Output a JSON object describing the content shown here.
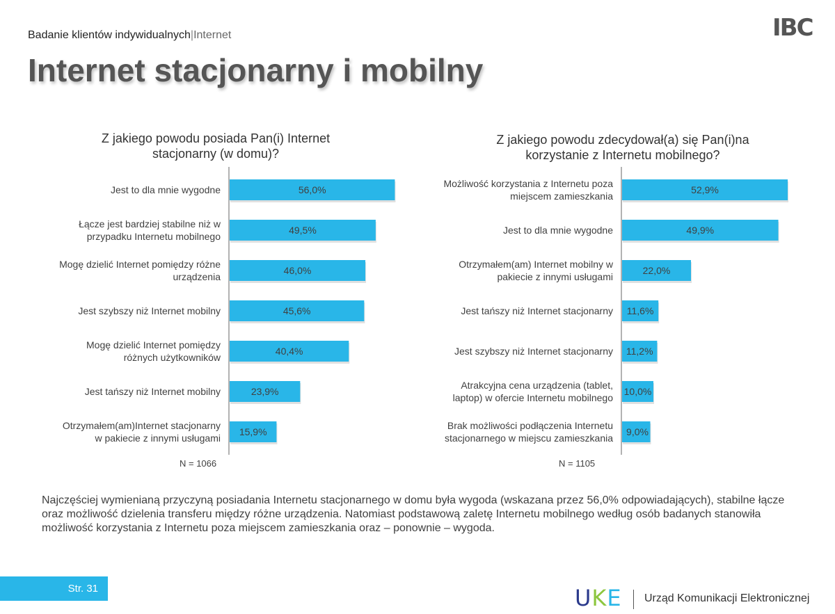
{
  "header": {
    "breadcrumb_main": "Badanie klientów indywidualnych",
    "breadcrumb_sep": "|",
    "breadcrumb_sub": "Internet",
    "page_title": "Internet stacjonarny i mobilny",
    "logo_ibc": "IBC"
  },
  "chart_data": [
    {
      "type": "bar",
      "orientation": "horizontal",
      "title_line1": "Z jakiego powodu posiada Pan(i) Internet",
      "title_line2": "stacjonarny (w domu)?",
      "categories": [
        [
          "Jest to dla mnie wygodne"
        ],
        [
          "Łącze jest bardziej stabilne niż w",
          "przypadku Internetu mobilnego"
        ],
        [
          "Mogę dzielić Internet pomiędzy różne",
          "urządzenia"
        ],
        [
          "Jest szybszy niż Internet mobilny"
        ],
        [
          "Mogę dzielić Internet pomiędzy",
          "różnych użytkowników"
        ],
        [
          "Jest tańszy niż Internet mobilny"
        ],
        [
          "Otrzymałem(am)Internet stacjonarny",
          "w pakiecie z innymi usługami"
        ]
      ],
      "values": [
        56.0,
        49.5,
        46.0,
        45.6,
        40.4,
        23.9,
        15.9
      ],
      "value_labels": [
        "56,0%",
        "49,5%",
        "46,0%",
        "45,6%",
        "40,4%",
        "23,9%",
        "15,9%"
      ],
      "n_label": "N = 1066",
      "color": "#29B6E8"
    },
    {
      "type": "bar",
      "orientation": "horizontal",
      "title_line1": "Z jakiego powodu zdecydował(a) się Pan(i)na",
      "title_line2": "korzystanie z Internetu mobilnego?",
      "categories": [
        [
          "Możliwość korzystania z Internetu poza",
          "miejscem zamieszkania"
        ],
        [
          "Jest to dla mnie wygodne"
        ],
        [
          "Otrzymałem(am) Internet mobilny w",
          "pakiecie z innymi usługami"
        ],
        [
          "Jest tańszy niż Internet stacjonarny"
        ],
        [
          "Jest szybszy niż Internet stacjonarny"
        ],
        [
          "Atrakcyjna cena urządzenia (tablet,",
          "laptop) w ofercie Internetu mobilnego"
        ],
        [
          "Brak możliwości podłączenia Internetu",
          "stacjonarnego w miejscu zamieszkania"
        ]
      ],
      "values": [
        52.9,
        49.9,
        22.0,
        11.6,
        11.2,
        10.0,
        9.0
      ],
      "value_labels": [
        "52,9%",
        "49,9%",
        "22,0%",
        "11,6%",
        "11,2%",
        "10,0%",
        "9,0%"
      ],
      "n_label": "N = 1105",
      "color": "#29B6E8"
    }
  ],
  "summary": "Najczęściej wymienianą przyczyną posiadania Internetu stacjonarnego w domu była wygoda (wskazana przez 56,0% odpowiadających), stabilne łącze oraz możliwość dzielenia transferu między różne urządzenia. Natomiast podstawową zaletę Internetu mobilnego według osób badanych stanowiła możliwość korzystania z Internetu poza miejscem zamieszkania oraz – ponownie – wygoda.",
  "footer": {
    "page_label": "Str. 31",
    "uke_letters": [
      "U",
      "K",
      "E"
    ],
    "uke_colors": [
      "#2B3A8C",
      "#8DC63F",
      "#29B6E8"
    ],
    "org_name": "Urząd Komunikacji Elektronicznej"
  }
}
